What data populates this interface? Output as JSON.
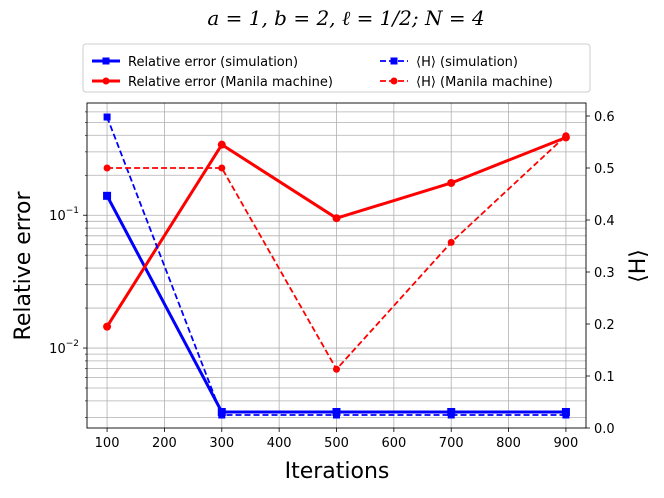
{
  "chart_data": {
    "type": "line",
    "title": "a = 1, b = 2, ℓ = 1/2; N = 4",
    "xlabel": "Iterations",
    "ylabel_left": "Relative error",
    "ylabel_right": "⟨H⟩",
    "x": [
      100,
      300,
      500,
      700,
      900
    ],
    "xlim": [
      65,
      935
    ],
    "xticks": [
      100,
      200,
      300,
      400,
      500,
      600,
      700,
      800,
      900
    ],
    "left_axis": {
      "scale": "log",
      "ylim": [
        0.0025,
        0.7
      ],
      "ticks": [
        {
          "value": 0.01,
          "base": "10",
          "exp": "−2"
        },
        {
          "value": 0.1,
          "base": "10",
          "exp": "−1"
        }
      ]
    },
    "right_axis": {
      "scale": "linear",
      "ylim": [
        0.0,
        0.625
      ],
      "ticks": [
        "0.0",
        "0.1",
        "0.2",
        "0.3",
        "0.4",
        "0.5",
        "0.6"
      ]
    },
    "grid": true,
    "legend_position": "above",
    "series": [
      {
        "name": "Relative error (simulation)",
        "axis": "left",
        "color": "#0000ff",
        "style": "solid",
        "marker": "square",
        "values": [
          0.14,
          0.0033,
          0.0033,
          0.0033,
          0.0033
        ]
      },
      {
        "name": "Relative error (Manila machine)",
        "axis": "left",
        "color": "#ff0000",
        "style": "solid",
        "marker": "circle",
        "values": [
          0.0145,
          0.34,
          0.095,
          0.175,
          0.385
        ]
      },
      {
        "name": "⟨H⟩ (simulation)",
        "axis": "right",
        "color": "#0000ff",
        "style": "dashed",
        "marker": "square",
        "values": [
          0.598,
          0.025,
          0.025,
          0.025,
          0.025
        ]
      },
      {
        "name": "⟨H⟩ (Manila machine)",
        "axis": "right",
        "color": "#ff0000",
        "style": "dashed",
        "marker": "circle",
        "values": [
          0.5,
          0.5,
          0.113,
          0.357,
          0.562
        ]
      }
    ]
  }
}
